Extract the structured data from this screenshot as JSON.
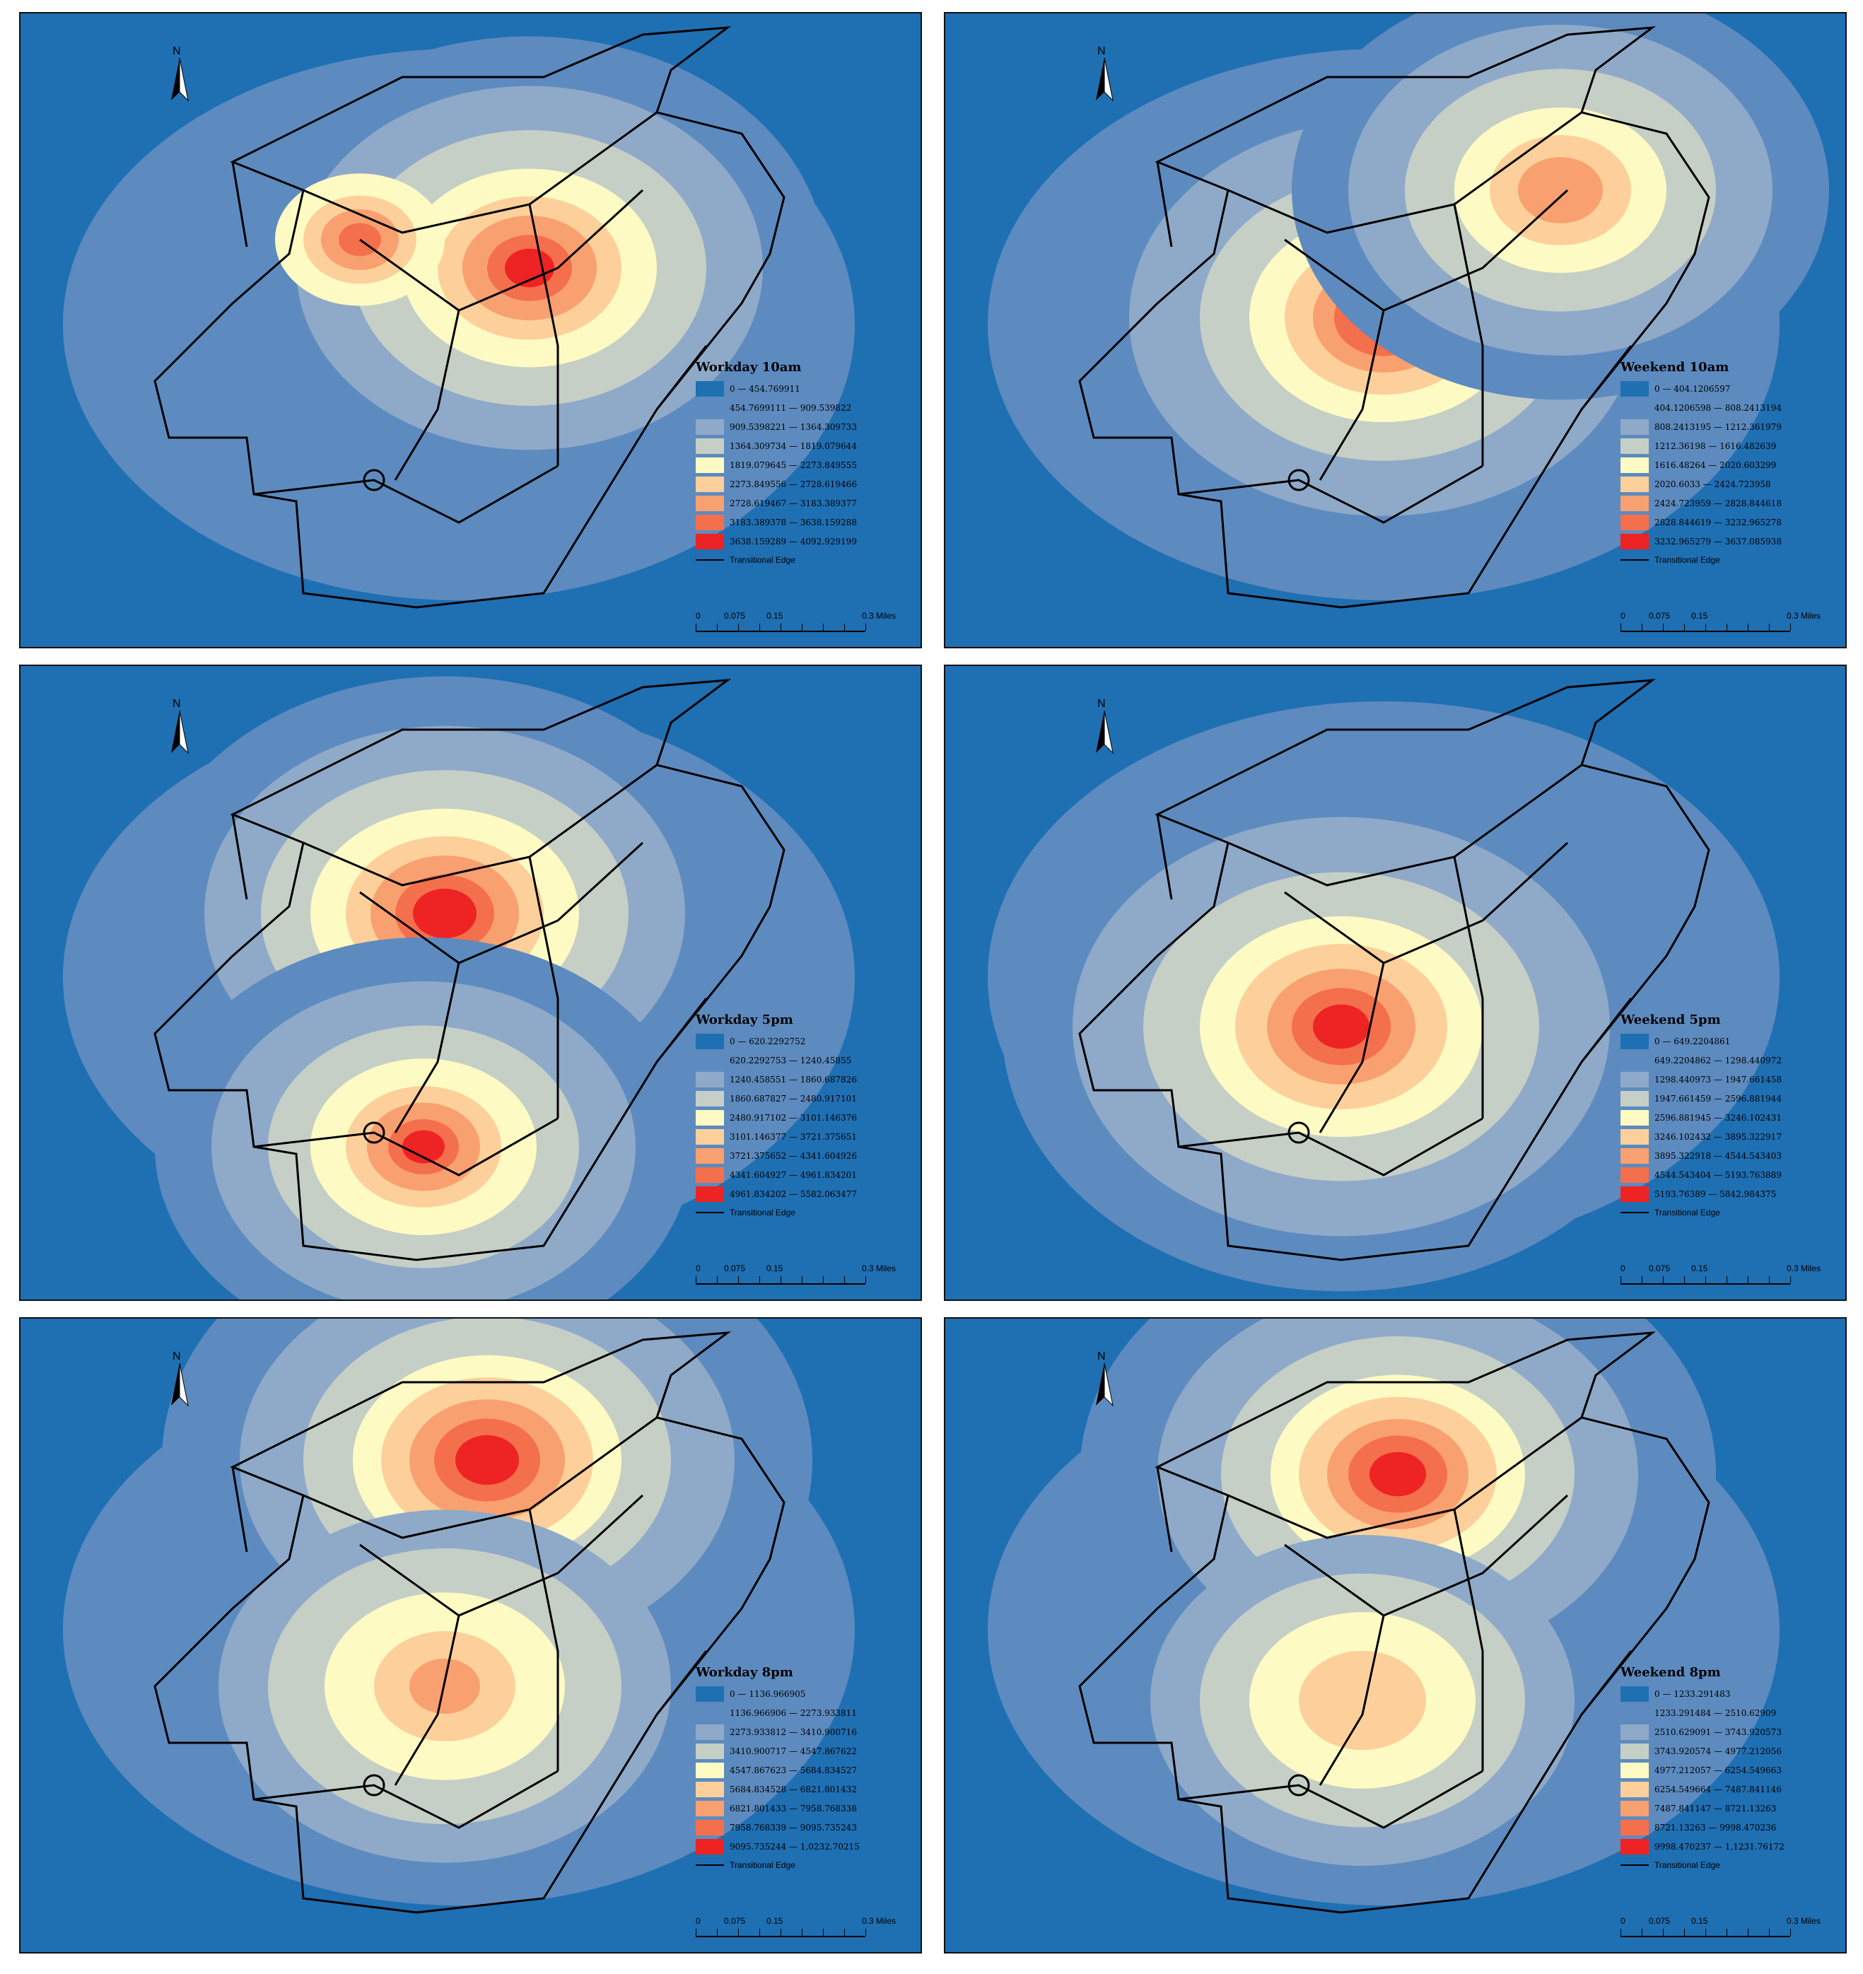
{
  "panels": [
    {
      "title": "Workday 10am",
      "classes": [
        "0 — 454.769911",
        "454.7699111 — 909.539822",
        "909.5398221 — 1364.309733",
        "1364.309734 — 1819.079644",
        "1819.079645 — 2273.849555",
        "2273.849556 — 2728.619466",
        "2728.619467 — 3183.389377",
        "3183.389378 — 3638.159288",
        "3638.159289 — 4092.929199"
      ]
    },
    {
      "title": "Weekend 10am",
      "classes": [
        "0 — 404.1206597",
        "404.1206598 — 808.2413194",
        "808.2413195 — 1212.361979",
        "1212.36198 — 1616.482639",
        "1616.48264 — 2020.603299",
        "2020.6033 — 2424.723958",
        "2424.723959 — 2828.844618",
        "2828.844619 — 3232.965278",
        "3232.965279 — 3637.085938"
      ]
    },
    {
      "title": "Workday 5pm",
      "classes": [
        "0 — 620.2292752",
        "620.2292753 — 1240.45855",
        "1240.458551 — 1860.687826",
        "1860.687827 — 2480.917101",
        "2480.917102 — 3101.146376",
        "3101.146377 — 3721.375651",
        "3721.375652 — 4341.604926",
        "4341.604927 — 4961.834201",
        "4961.834202 — 5582.063477"
      ]
    },
    {
      "title": "Weekend 5pm",
      "classes": [
        "0 — 649.2204861",
        "649.2204862 — 1298.440972",
        "1298.440973 — 1947.661458",
        "1947.661459 — 2596.881944",
        "2596.881945 — 3246.102431",
        "3246.102432 — 3895.322917",
        "3895.322918 — 4544.543403",
        "4544.543404 — 5193.763889",
        "5193.76389 — 5842.984375"
      ]
    },
    {
      "title": "Workday 8pm",
      "classes": [
        "0 — 1136.966905",
        "1136.966906 — 2273.933811",
        "2273.933812 — 3410.900716",
        "3410.900717 — 4547.867622",
        "4547.867623 — 5684.834527",
        "5684.834528 — 6821.801432",
        "6821.801433 — 7958.768338",
        "7958.768339 — 9095.735243",
        "9095.735244 — 1,0232.70215"
      ]
    },
    {
      "title": "Weekend 8pm",
      "classes": [
        "0 — 1233.291483",
        "1233.291484 — 2510.62909",
        "2510.629091 — 3743.920573",
        "3743.920574 — 4977.212056",
        "4977.212057 — 6254.549663",
        "6254.549664 — 7487.841146",
        "7487.841147 — 8721.13263",
        "8721.13263 — 9998.470236",
        "9998.470237 — 1,1231.76172"
      ]
    }
  ],
  "legend_colors": [
    "#1f6fb3",
    "#5d8bbf",
    "#8fa9c8",
    "#c5cfc6",
    "#fdfbc3",
    "#fdd09b",
    "#f9a070",
    "#f46f4c",
    "#ee2323"
  ],
  "edge_label": "Transitional Edge",
  "scale": {
    "ticks": [
      "0",
      "0.075",
      "0.15",
      "0.3 Miles"
    ]
  },
  "north_label": "N"
}
